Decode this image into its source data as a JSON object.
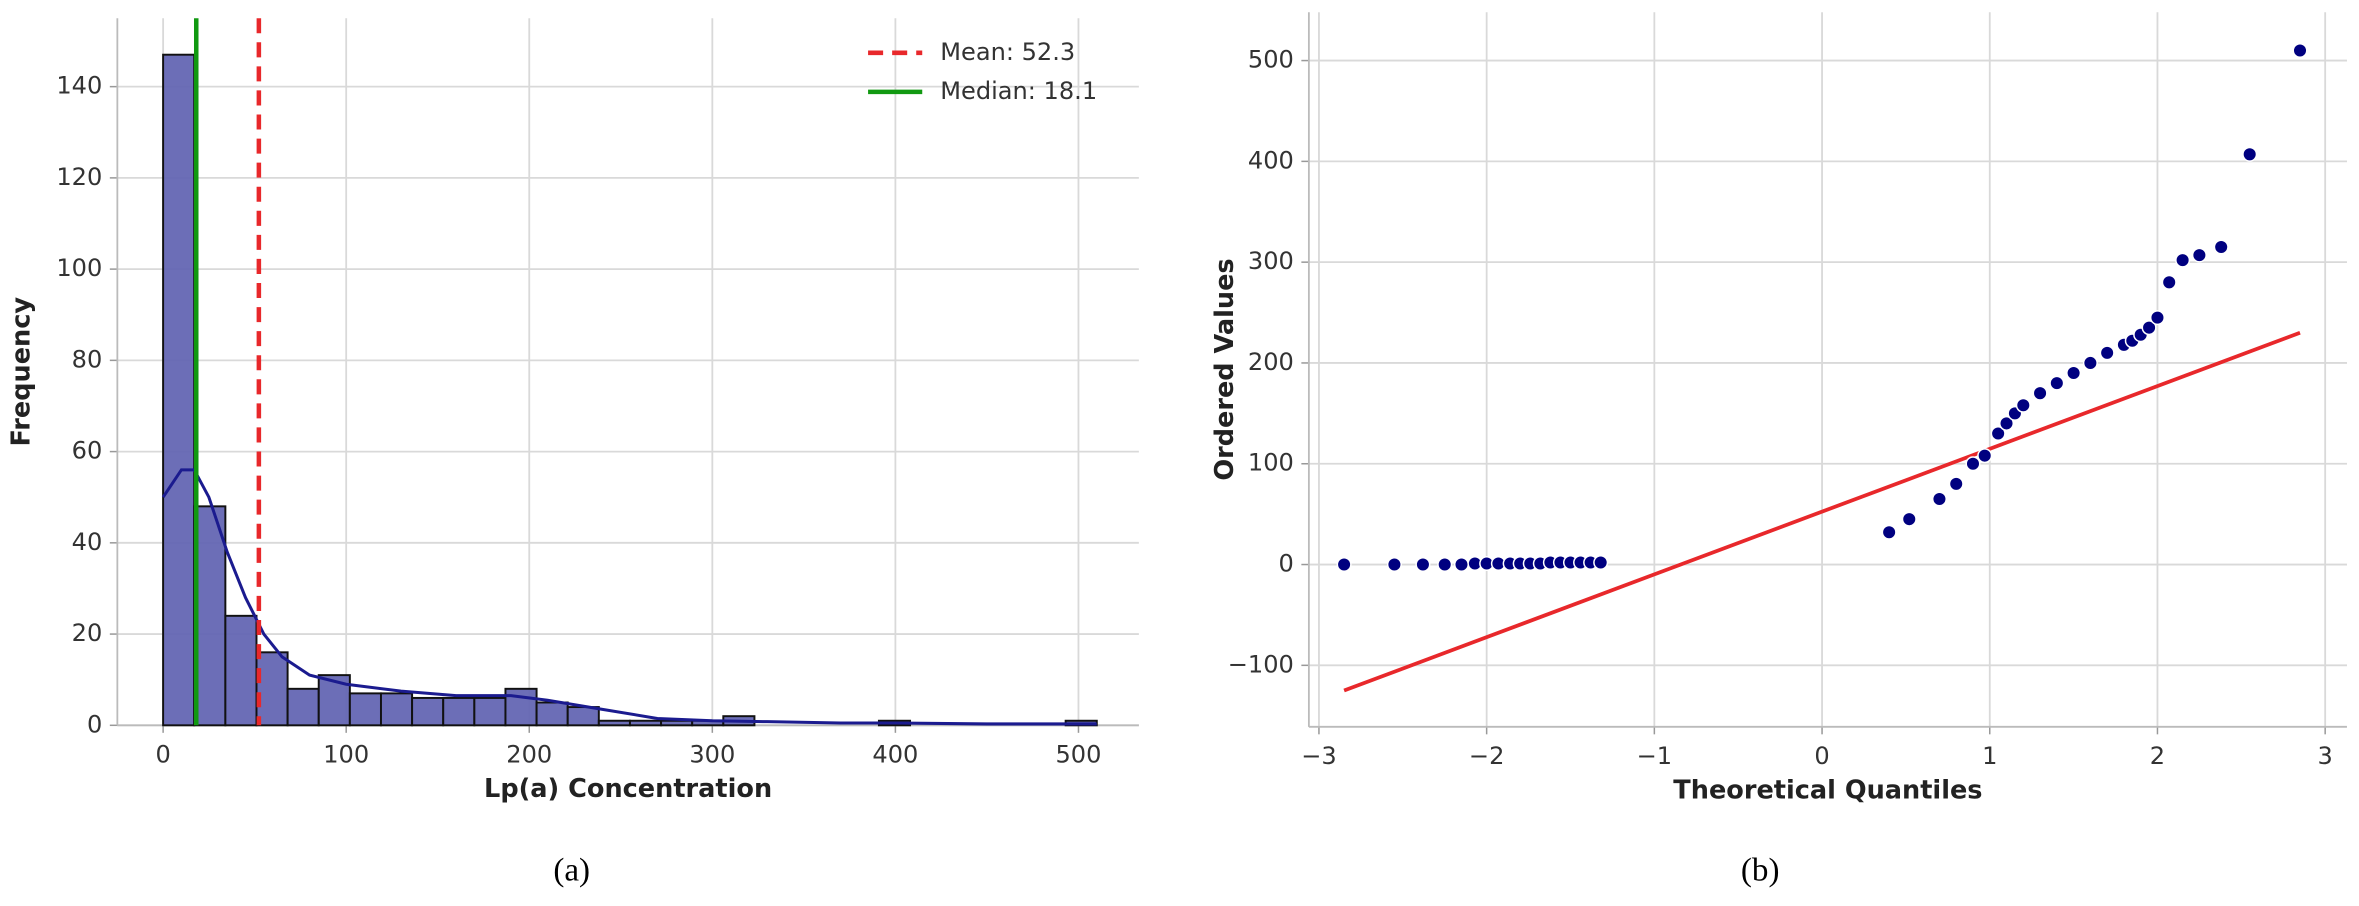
{
  "chart_data": [
    {
      "type": "histogram",
      "caption": "(a)",
      "xlabel": "Lp(a) Concentration",
      "ylabel": "Frequency",
      "bins": [
        0,
        17,
        34,
        51,
        68,
        85,
        102,
        119,
        136,
        153,
        170,
        187,
        204,
        221,
        238,
        255,
        272,
        289,
        306,
        323,
        340,
        357,
        374,
        391,
        408,
        425,
        442,
        459,
        476,
        493,
        510
      ],
      "counts": [
        147,
        48,
        24,
        16,
        8,
        11,
        7,
        7,
        6,
        6,
        6,
        8,
        5,
        4,
        1,
        1,
        1,
        1,
        2,
        0,
        0,
        0,
        0,
        1,
        0,
        0,
        0,
        0,
        0,
        1
      ],
      "color": "#6466b3",
      "edge_color": "#111111",
      "kde": {
        "x": [
          0,
          10,
          17,
          25,
          35,
          45,
          55,
          65,
          80,
          100,
          130,
          160,
          190,
          210,
          240,
          270,
          300,
          330,
          370,
          400,
          450,
          510
        ],
        "y": [
          50,
          56,
          56,
          50,
          38,
          28,
          20,
          15,
          11,
          9,
          7.5,
          6.5,
          6.5,
          5.5,
          3.5,
          1.5,
          1,
          0.8,
          0.5,
          0.5,
          0.3,
          0.3
        ],
        "color": "#1b1b8f"
      },
      "vlines": [
        {
          "name": "Mean: 52.3",
          "value": 52.3,
          "color": "#e8282b",
          "dashed": true
        },
        {
          "name": "Median: 18.1",
          "value": 18.1,
          "color": "#119911",
          "dashed": false
        }
      ],
      "legend": "upper right",
      "xlim": [
        -25,
        533
      ],
      "ylim": [
        0,
        155
      ],
      "xticks": [
        0,
        100,
        200,
        300,
        400,
        500
      ],
      "yticks": [
        0,
        20,
        40,
        60,
        80,
        100,
        120,
        140
      ],
      "grid": true
    },
    {
      "type": "scatter",
      "caption": "(b)",
      "xlabel": "Theoretical Quantiles",
      "ylabel": "Ordered Values",
      "x": [
        -2.85,
        -2.55,
        -2.38,
        -2.25,
        -2.15,
        -2.07,
        -2.0,
        -1.93,
        -1.86,
        -1.8,
        -1.74,
        -1.68,
        -1.62,
        -1.56,
        -1.5,
        -1.44,
        -1.38,
        -1.32,
        0.4,
        0.52,
        0.7,
        0.8,
        0.9,
        0.97,
        1.05,
        1.1,
        1.15,
        1.2,
        1.3,
        1.4,
        1.5,
        1.6,
        1.7,
        1.8,
        1.85,
        1.9,
        1.95,
        2.0,
        2.07,
        2.15,
        2.25,
        2.38,
        2.55,
        2.85
      ],
      "y": [
        0,
        0,
        0,
        0,
        0,
        1,
        1,
        1,
        1,
        1,
        1,
        1,
        2,
        2,
        2,
        2,
        2,
        2,
        32,
        45,
        65,
        80,
        100,
        108,
        130,
        140,
        150,
        158,
        170,
        180,
        190,
        200,
        210,
        218,
        222,
        228,
        235,
        245,
        280,
        302,
        307,
        315,
        407,
        510
      ],
      "color": "#000080",
      "fit_line": {
        "x": [
          -2.85,
          2.85
        ],
        "y": [
          -125,
          230
        ],
        "color": "#e8282b"
      },
      "xlim": [
        -3.06,
        3.13
      ],
      "ylim": [
        -161,
        548
      ],
      "xticks": [
        {
          "value": -3,
          "label": "−3"
        },
        {
          "value": -2,
          "label": "−2"
        },
        {
          "value": -1,
          "label": "−1"
        },
        0,
        1,
        2,
        3
      ],
      "yticks": [
        {
          "value": -100,
          "label": "−100"
        },
        0,
        100,
        200,
        300,
        400,
        500
      ],
      "grid": true
    }
  ]
}
